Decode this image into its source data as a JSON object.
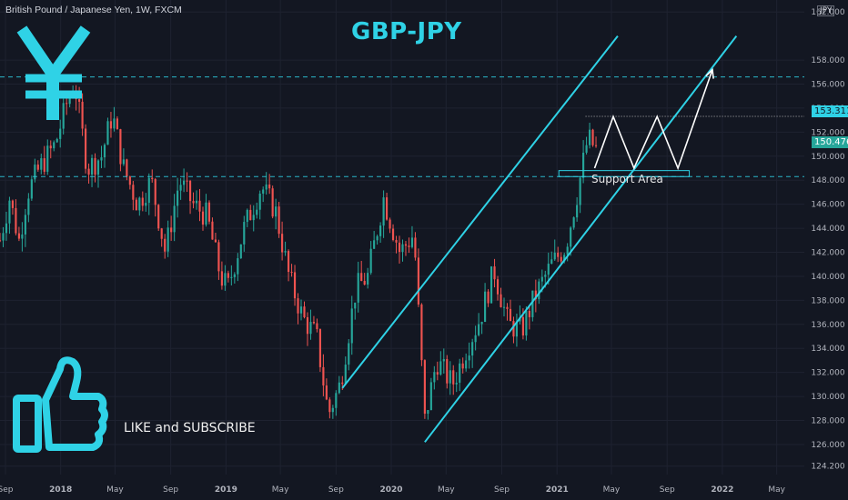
{
  "header": {
    "symbol_info": "British Pound / Japanese Yen, 1W, FXCM",
    "currency_badge": "JPY",
    "title": "GBP-JPY"
  },
  "annotations": {
    "support_label": "Support Area",
    "cta_label": "LIKE and SUBSCRIBE",
    "price_badge_high": "153.311",
    "price_badge_last": "150.476"
  },
  "icons": {
    "logo": "yen-sign-icon",
    "cta": "thumbs-up-icon"
  },
  "colors": {
    "background": "#131722",
    "up_candle": "#26a69a",
    "down_candle": "#ef5350",
    "accent": "#2fd2e6",
    "grid": "#1e2230"
  },
  "chart_data": {
    "type": "candlestick",
    "title": "GBP-JPY",
    "y_axis": {
      "position": "right",
      "ylim": [
        123.5,
        163
      ],
      "ticks": [
        124.2,
        126,
        128,
        130,
        132,
        134,
        136,
        138,
        140,
        142,
        144,
        146,
        148,
        150,
        152,
        154,
        156,
        158,
        162
      ]
    },
    "x_axis": {
      "xlim": [
        "2017-08-20",
        "2022-07-01"
      ],
      "ticks": [
        {
          "date": "2017-09-01",
          "label": "Sep"
        },
        {
          "date": "2018-01-01",
          "label": "2018"
        },
        {
          "date": "2018-05-01",
          "label": "May"
        },
        {
          "date": "2018-09-01",
          "label": "Sep"
        },
        {
          "date": "2019-01-01",
          "label": "2019"
        },
        {
          "date": "2019-05-01",
          "label": "May"
        },
        {
          "date": "2019-09-01",
          "label": "Sep"
        },
        {
          "date": "2020-01-01",
          "label": "2020"
        },
        {
          "date": "2020-05-01",
          "label": "May"
        },
        {
          "date": "2020-09-01",
          "label": "Sep"
        },
        {
          "date": "2021-01-01",
          "label": "2021"
        },
        {
          "date": "2021-05-01",
          "label": "May"
        },
        {
          "date": "2021-09-01",
          "label": "Sep"
        },
        {
          "date": "2022-01-01",
          "label": "2022"
        },
        {
          "date": "2022-05-01",
          "label": "May"
        }
      ]
    },
    "close_path": [
      {
        "date": "2017-08-20",
        "close": 143.0
      },
      {
        "date": "2017-09-10",
        "close": 146.5
      },
      {
        "date": "2017-10-01",
        "close": 143.0
      },
      {
        "date": "2017-10-20",
        "close": 147.0
      },
      {
        "date": "2017-11-15",
        "close": 149.0
      },
      {
        "date": "2017-12-20",
        "close": 151.0
      },
      {
        "date": "2018-01-15",
        "close": 154.5
      },
      {
        "date": "2018-02-01",
        "close": 156.0
      },
      {
        "date": "2018-03-01",
        "close": 149.0
      },
      {
        "date": "2018-04-01",
        "close": 150.0
      },
      {
        "date": "2018-04-25",
        "close": 153.5
      },
      {
        "date": "2018-05-20",
        "close": 149.0
      },
      {
        "date": "2018-06-20",
        "close": 146.0
      },
      {
        "date": "2018-07-20",
        "close": 148.0
      },
      {
        "date": "2018-08-20",
        "close": 142.0
      },
      {
        "date": "2018-09-20",
        "close": 148.0
      },
      {
        "date": "2018-10-20",
        "close": 146.0
      },
      {
        "date": "2018-11-20",
        "close": 145.0
      },
      {
        "date": "2018-12-20",
        "close": 140.0
      },
      {
        "date": "2019-01-05",
        "close": 139.0
      },
      {
        "date": "2019-02-10",
        "close": 144.0
      },
      {
        "date": "2019-03-20",
        "close": 147.5
      },
      {
        "date": "2019-04-20",
        "close": 145.5
      },
      {
        "date": "2019-05-20",
        "close": 140.0
      },
      {
        "date": "2019-06-20",
        "close": 136.5
      },
      {
        "date": "2019-07-20",
        "close": 135.0
      },
      {
        "date": "2019-08-15",
        "close": 128.5
      },
      {
        "date": "2019-09-10",
        "close": 131.0
      },
      {
        "date": "2019-10-15",
        "close": 139.0
      },
      {
        "date": "2019-11-10",
        "close": 140.0
      },
      {
        "date": "2019-12-15",
        "close": 146.5
      },
      {
        "date": "2020-01-20",
        "close": 142.0
      },
      {
        "date": "2020-02-20",
        "close": 143.5
      },
      {
        "date": "2020-03-15",
        "close": 128.0
      },
      {
        "date": "2020-04-10",
        "close": 133.0
      },
      {
        "date": "2020-05-15",
        "close": 131.0
      },
      {
        "date": "2020-06-15",
        "close": 134.0
      },
      {
        "date": "2020-07-15",
        "close": 136.5
      },
      {
        "date": "2020-08-15",
        "close": 140.5
      },
      {
        "date": "2020-09-15",
        "close": 136.0
      },
      {
        "date": "2020-10-15",
        "close": 135.5
      },
      {
        "date": "2020-11-15",
        "close": 138.5
      },
      {
        "date": "2020-12-20",
        "close": 141.0
      },
      {
        "date": "2021-01-20",
        "close": 142.5
      },
      {
        "date": "2021-02-15",
        "close": 147.0
      },
      {
        "date": "2021-03-10",
        "close": 151.5
      },
      {
        "date": "2021-03-30",
        "close": 150.5
      }
    ],
    "levels": [
      {
        "name": "top-resistance",
        "style": "dashed",
        "color": "#2fd2e6",
        "price": 156.6
      },
      {
        "name": "support",
        "style": "dashed",
        "color": "#2fd2e6",
        "price": 148.3
      },
      {
        "name": "recent-high",
        "style": "dotted",
        "color": "#cccccc",
        "price": 153.311,
        "from": "2021-03-05"
      }
    ],
    "channel": {
      "upper": [
        {
          "date": "2019-09-15",
          "price": 130.7
        },
        {
          "date": "2021-05-15",
          "price": 160.0
        }
      ],
      "lower": [
        {
          "date": "2020-03-15",
          "price": 126.2
        },
        {
          "date": "2022-02-01",
          "price": 160.0
        }
      ]
    },
    "support_box": {
      "from": "2021-01-05",
      "to": "2021-10-20",
      "high": 148.8,
      "low": 148.3
    },
    "projection": [
      {
        "date": "2021-03-25",
        "price": 149.0
      },
      {
        "date": "2021-05-05",
        "price": 153.3
      },
      {
        "date": "2021-06-20",
        "price": 149.0
      },
      {
        "date": "2021-08-10",
        "price": 153.3
      },
      {
        "date": "2021-09-25",
        "price": 149.0
      },
      {
        "date": "2021-12-10",
        "price": 157.2
      }
    ]
  }
}
